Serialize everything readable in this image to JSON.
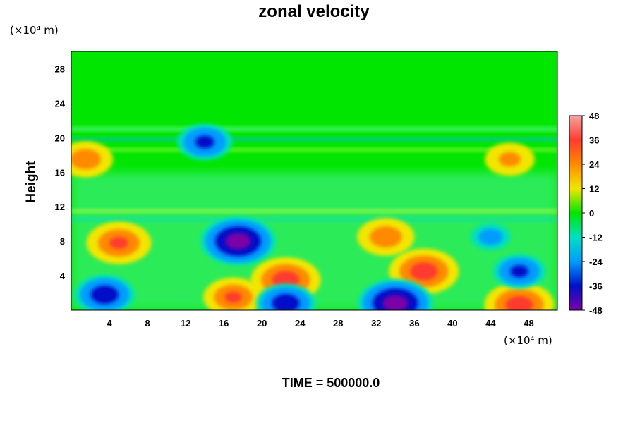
{
  "chart_data": {
    "type": "heatmap",
    "title": "zonal velocity",
    "ylabel": "Height",
    "y_unit": "(×10⁴ m)",
    "x_unit": "(×10⁴ m)",
    "xlim": [
      0,
      51
    ],
    "ylim": [
      0,
      30
    ],
    "x_ticks": [
      4,
      8,
      12,
      16,
      20,
      24,
      28,
      32,
      36,
      40,
      44,
      48
    ],
    "y_ticks": [
      4,
      8,
      12,
      16,
      20,
      24,
      28
    ],
    "x_tick_labels": [
      "4",
      "8",
      "12",
      "16",
      "20",
      "24",
      "28",
      "32",
      "36",
      "40",
      "44",
      "48"
    ],
    "y_tick_labels": [
      "4",
      "8",
      "12",
      "16",
      "20",
      "24",
      "28"
    ],
    "colorbar": {
      "range": [
        -48,
        48
      ],
      "ticks": [
        48,
        36,
        24,
        12,
        0,
        -12,
        -24,
        -36,
        -48
      ],
      "tick_labels": [
        "48",
        "36",
        "24",
        "12",
        "0",
        "-12",
        "-24",
        "-36",
        "-48"
      ],
      "colors_high_to_low": [
        "#f7a1a1",
        "#ff3b2f",
        "#ff8a00",
        "#f2e600",
        "#00e600",
        "#00e0c0",
        "#009cff",
        "#0010c8",
        "#7a00a8"
      ]
    },
    "background_value": 0,
    "features": [
      {
        "x": 5,
        "y": 7.8,
        "value": 40
      },
      {
        "x": 1.5,
        "y": 17.5,
        "value": 32
      },
      {
        "x": 46,
        "y": 17.5,
        "value": 28
      },
      {
        "x": 17.5,
        "y": 8,
        "value": -48
      },
      {
        "x": 14,
        "y": 19.5,
        "value": -32
      },
      {
        "x": 3.5,
        "y": 1.8,
        "value": -36
      },
      {
        "x": 17,
        "y": 1.5,
        "value": 36
      },
      {
        "x": 22.5,
        "y": 3.5,
        "value": 44
      },
      {
        "x": 22.5,
        "y": 0.8,
        "value": -36
      },
      {
        "x": 33,
        "y": 8.5,
        "value": 34
      },
      {
        "x": 37,
        "y": 4.5,
        "value": 44
      },
      {
        "x": 34,
        "y": 0.8,
        "value": -48
      },
      {
        "x": 47,
        "y": 0.6,
        "value": 44
      },
      {
        "x": 47,
        "y": 4.5,
        "value": -30
      },
      {
        "x": 44,
        "y": 8.5,
        "value": -20
      }
    ]
  },
  "footer": {
    "time_label": "TIME = 500000.0"
  }
}
